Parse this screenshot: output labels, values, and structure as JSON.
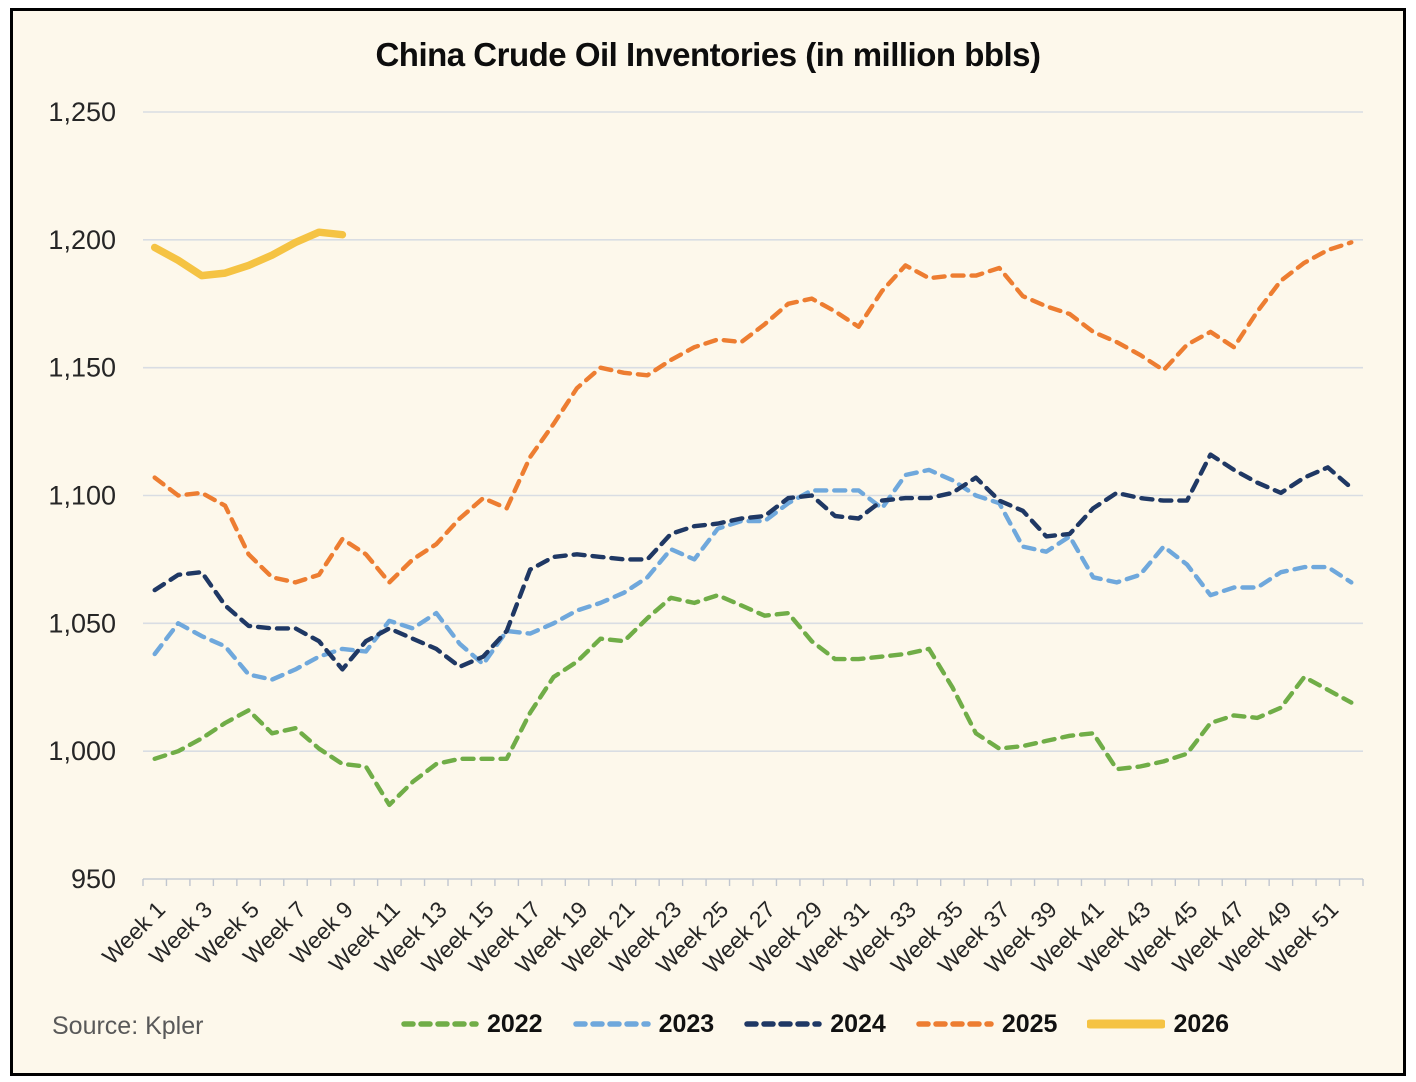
{
  "figure": {
    "title": "China Crude Oil Inventories (in million bbls)",
    "source": "Source: Kpler"
  },
  "chart_data": {
    "type": "line",
    "title": "China Crude Oil Inventories (in million bbls)",
    "xlabel": "",
    "ylabel": "",
    "weeks": 52,
    "x_tick_labels": [
      "Week 1",
      "Week 3",
      "Week 5",
      "Week 7",
      "Week 9",
      "Week 11",
      "Week 13",
      "Week 15",
      "Week 17",
      "Week 19",
      "Week 21",
      "Week 23",
      "Week 25",
      "Week 27",
      "Week 29",
      "Week 31",
      "Week 33",
      "Week 35",
      "Week 37",
      "Week 39",
      "Week 41",
      "Week 43",
      "Week 45",
      "Week 47",
      "Week 49",
      "Week 51"
    ],
    "x_tick_weeks": [
      1,
      3,
      5,
      7,
      9,
      11,
      13,
      15,
      17,
      19,
      21,
      23,
      25,
      27,
      29,
      31,
      33,
      35,
      37,
      39,
      41,
      43,
      45,
      47,
      49,
      51
    ],
    "ylim": [
      950,
      1250
    ],
    "y_tick_values": [
      950,
      1000,
      1050,
      1100,
      1150,
      1200,
      1250
    ],
    "y_tick_labels": [
      "950",
      "1,000",
      "1,050",
      "1,100",
      "1,150",
      "1,200",
      "1,250"
    ],
    "grid": "horizontal",
    "legend_position": "bottom",
    "background_color": "#FDF8EB",
    "gridline_color": "#D9DDE3",
    "series": [
      {
        "name": "2022",
        "color": "#70AD47",
        "style": "dashed",
        "values": [
          997,
          1000,
          1005,
          1011,
          1016,
          1007,
          1009,
          1001,
          995,
          994,
          979,
          988,
          995,
          997,
          997,
          997,
          1015,
          1029,
          1035,
          1044,
          1043,
          1052,
          1060,
          1058,
          1061,
          1057,
          1053,
          1054,
          1043,
          1036,
          1036,
          1037,
          1038,
          1040,
          1025,
          1007,
          1001,
          1002,
          1004,
          1006,
          1007,
          993,
          994,
          996,
          999,
          1011,
          1014,
          1013,
          1017,
          1029,
          1024,
          1019
        ]
      },
      {
        "name": "2023",
        "color": "#6FA8DC",
        "style": "dashed",
        "values": [
          1038,
          1050,
          1045,
          1041,
          1030,
          1028,
          1032,
          1037,
          1040,
          1039,
          1051,
          1048,
          1054,
          1042,
          1034,
          1047,
          1046,
          1050,
          1055,
          1058,
          1062,
          1068,
          1079,
          1075,
          1087,
          1090,
          1090,
          1097,
          1102,
          1102,
          1102,
          1095,
          1108,
          1110,
          1106,
          1100,
          1097,
          1080,
          1078,
          1084,
          1068,
          1066,
          1069,
          1080,
          1073,
          1061,
          1064,
          1064,
          1070,
          1072,
          1072,
          1066
        ]
      },
      {
        "name": "2024",
        "color": "#1F3864",
        "style": "dashed",
        "values": [
          1063,
          1069,
          1070,
          1057,
          1049,
          1048,
          1048,
          1043,
          1032,
          1043,
          1048,
          1044,
          1040,
          1033,
          1037,
          1047,
          1071,
          1076,
          1077,
          1076,
          1075,
          1075,
          1085,
          1088,
          1089,
          1091,
          1092,
          1099,
          1100,
          1092,
          1091,
          1098,
          1099,
          1099,
          1101,
          1107,
          1098,
          1094,
          1084,
          1085,
          1095,
          1101,
          1099,
          1098,
          1098,
          1116,
          1110,
          1105,
          1101,
          1107,
          1111,
          1103
        ]
      },
      {
        "name": "2025",
        "color": "#ED7D31",
        "style": "dashed",
        "values": [
          1107,
          1100,
          1101,
          1096,
          1077,
          1068,
          1066,
          1069,
          1083,
          1077,
          1066,
          1075,
          1081,
          1091,
          1099,
          1095,
          1115,
          1128,
          1142,
          1150,
          1148,
          1147,
          1153,
          1158,
          1161,
          1160,
          1167,
          1175,
          1177,
          1172,
          1166,
          1180,
          1190,
          1185,
          1186,
          1186,
          1189,
          1178,
          1174,
          1171,
          1164,
          1160,
          1155,
          1149,
          1159,
          1164,
          1158,
          1172,
          1184,
          1191,
          1196,
          1199
        ]
      },
      {
        "name": "2026",
        "color": "#F5C343",
        "style": "solid",
        "values": [
          1197,
          1192,
          1186,
          1187,
          1190,
          1194,
          1199,
          1203,
          1202
        ]
      }
    ]
  }
}
